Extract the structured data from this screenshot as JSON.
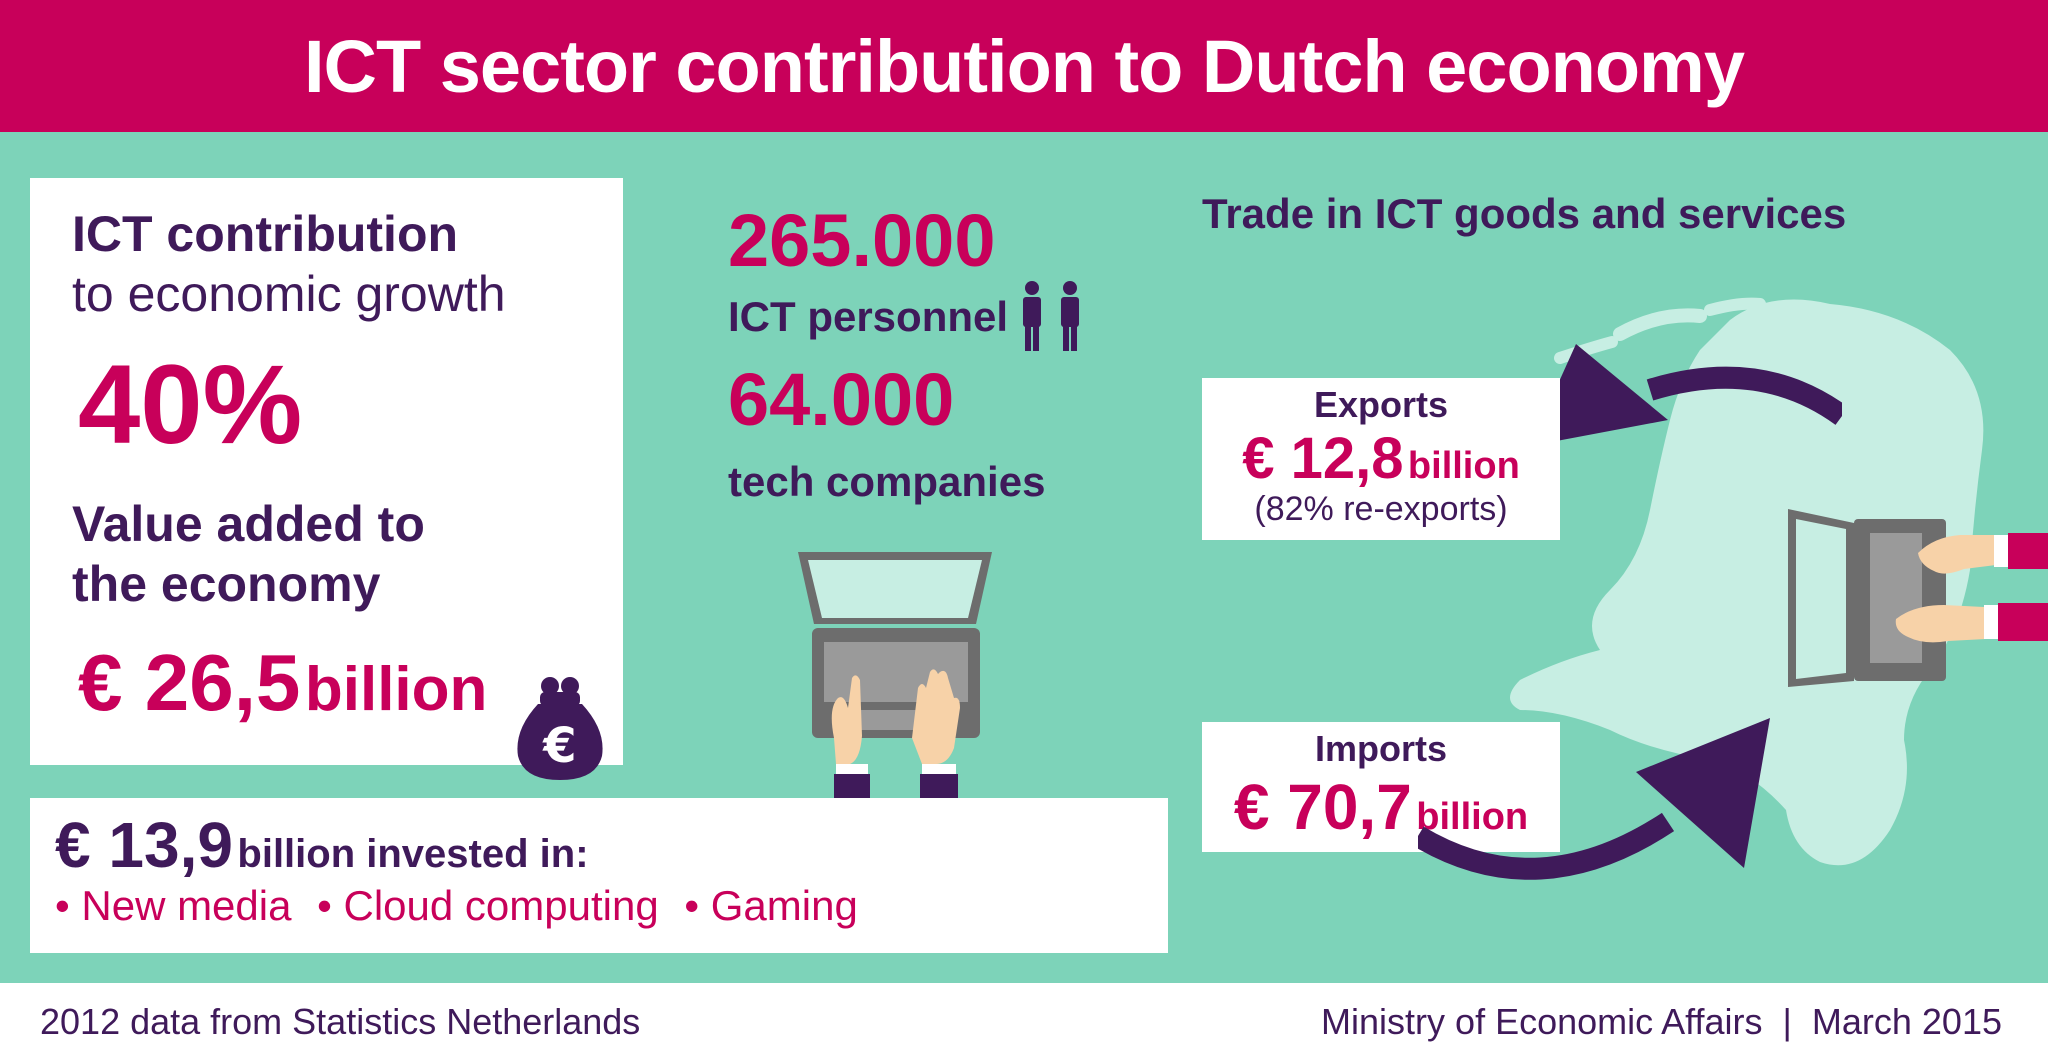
{
  "title": "ICT sector contribution to Dutch economy",
  "growth": {
    "heading": "ICT contribution",
    "subheading": "to economic growth",
    "value": "40%"
  },
  "value_added": {
    "heading_line1": "Value added to",
    "heading_line2": "the economy",
    "value": "€ 26,5",
    "unit": "billion",
    "icon": "money-purse-euro-icon"
  },
  "personnel": {
    "value": "265.000",
    "label": "ICT personnel",
    "icon": "people-icon"
  },
  "companies": {
    "value": "64.000",
    "label": "tech companies"
  },
  "investment": {
    "value": "€ 13,9",
    "text": "billion invested in:",
    "items": [
      "New media",
      "Cloud computing",
      "Gaming"
    ]
  },
  "trade": {
    "heading": "Trade in ICT goods and services",
    "exports": {
      "label": "Exports",
      "value": "€ 12,8",
      "unit": "billion",
      "note": "(82% re-exports)"
    },
    "imports": {
      "label": "Imports",
      "value": "€ 70,7",
      "unit": "billion"
    }
  },
  "footer": {
    "source": "2012 data from Statistics Netherlands",
    "credit": "Ministry of Economic Affairs  |  March 2015"
  },
  "colors": {
    "magenta": "#c8005a",
    "purple": "#3f1a5a",
    "mint": "#7dd3b9",
    "map": "#c7eee3"
  }
}
